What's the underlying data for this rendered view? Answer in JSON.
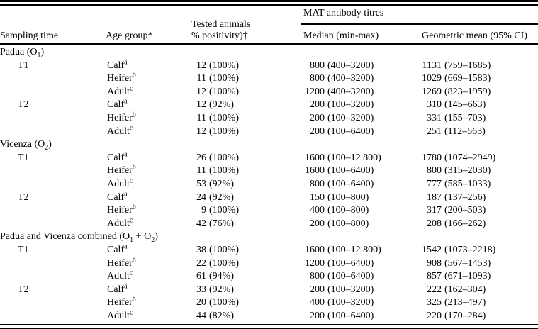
{
  "colors": {
    "text": "#000000",
    "background": "#ffffff",
    "rule": "#000000"
  },
  "table": {
    "header": {
      "col1": "Sampling time",
      "col2": "Age group*",
      "col3_line1": "Tested animals",
      "col3_line2": "% positivity)†",
      "mat_title": "MAT antibody titres",
      "col4": "Median (min-max)",
      "col5": "Geometric mean (95% CI)"
    },
    "sections": [
      {
        "title_pre": "Padua (O",
        "title_sub": "1",
        "title_post": ")",
        "rows": [
          {
            "time": "T1",
            "age": "Calf",
            "sup": "a",
            "n": "12",
            "pos": "(100%)",
            "med": "800",
            "medr": "(400–3200)",
            "gm": "1131",
            "gmr": "(759–1685)"
          },
          {
            "time": "",
            "age": "Heifer",
            "sup": "b",
            "n": "11",
            "pos": "(100%)",
            "med": "800",
            "medr": "(400–3200)",
            "gm": "1029",
            "gmr": "(669–1583)"
          },
          {
            "time": "",
            "age": "Adult",
            "sup": "c",
            "n": "12",
            "pos": "(100%)",
            "med": "1200",
            "medr": "(400–3200)",
            "gm": "1269",
            "gmr": "(823–1959)"
          },
          {
            "time": "T2",
            "age": "Calf",
            "sup": "a",
            "n": "12",
            "pos": "(92%)",
            "med": "200",
            "medr": "(100–3200)",
            "gm": "310",
            "gmr": "(145–663)"
          },
          {
            "time": "",
            "age": "Heifer",
            "sup": "b",
            "n": "11",
            "pos": "(100%)",
            "med": "200",
            "medr": "(100–3200)",
            "gm": "331",
            "gmr": "(155–703)"
          },
          {
            "time": "",
            "age": "Adult",
            "sup": "c",
            "n": "12",
            "pos": "(100%)",
            "med": "200",
            "medr": "(100–6400)",
            "gm": "251",
            "gmr": "(112–563)"
          }
        ]
      },
      {
        "title_pre": "Vicenza (O",
        "title_sub": "2",
        "title_post": ")",
        "rows": [
          {
            "time": "T1",
            "age": "Calf",
            "sup": "a",
            "n": "26",
            "pos": "(100%)",
            "med": "1600",
            "medr": "(100–12 800)",
            "gm": "1780",
            "gmr": "(1074–2949)"
          },
          {
            "time": "",
            "age": "Heifer",
            "sup": "b",
            "n": "11",
            "pos": "(100%)",
            "med": "1600",
            "medr": "(100–6400)",
            "gm": "800",
            "gmr": "(315–2030)"
          },
          {
            "time": "",
            "age": "Adult",
            "sup": "c",
            "n": "53",
            "pos": "(92%)",
            "med": "800",
            "medr": "(100–6400)",
            "gm": "777",
            "gmr": "(585–1033)"
          },
          {
            "time": "T2",
            "age": "Calf",
            "sup": "a",
            "n": "24",
            "pos": "(92%)",
            "med": "150",
            "medr": "(100–800)",
            "gm": "187",
            "gmr": "(137–256)"
          },
          {
            "time": "",
            "age": "Heifer",
            "sup": "b",
            "n": "9",
            "pos": "(100%)",
            "med": "400",
            "medr": "(100–800)",
            "gm": "317",
            "gmr": "(200–503)"
          },
          {
            "time": "",
            "age": "Adult",
            "sup": "c",
            "n": "42",
            "pos": "(76%)",
            "med": "200",
            "medr": "(100–800)",
            "gm": "208",
            "gmr": "(166–262)"
          }
        ]
      },
      {
        "title_pre": "Padua and Vicenza combined (O",
        "title_sub": "1",
        "title_mid": " + O",
        "title_sub2": "2",
        "title_post": ")",
        "rows": [
          {
            "time": "T1",
            "age": "Calf",
            "sup": "a",
            "n": "38",
            "pos": "(100%)",
            "med": "1600",
            "medr": "(100–12 800)",
            "gm": "1542",
            "gmr": "(1073–2218)"
          },
          {
            "time": "",
            "age": "Heifer",
            "sup": "b",
            "n": "22",
            "pos": "(100%)",
            "med": "1200",
            "medr": "(100–6400)",
            "gm": "908",
            "gmr": "(567–1453)"
          },
          {
            "time": "",
            "age": "Adult",
            "sup": "c",
            "n": "61",
            "pos": "(94%)",
            "med": "800",
            "medr": "(100–6400)",
            "gm": "857",
            "gmr": "(671–1093)"
          },
          {
            "time": "T2",
            "age": "Calf",
            "sup": "a",
            "n": "33",
            "pos": "(92%)",
            "med": "200",
            "medr": "(100–3200)",
            "gm": "222",
            "gmr": "(162–304)"
          },
          {
            "time": "",
            "age": "Heifer",
            "sup": "b",
            "n": "20",
            "pos": "(100%)",
            "med": "400",
            "medr": "(100–3200)",
            "gm": "325",
            "gmr": "(213–497)"
          },
          {
            "time": "",
            "age": "Adult",
            "sup": "c",
            "n": "44",
            "pos": "(82%)",
            "med": "200",
            "medr": "(100–6400)",
            "gm": "220",
            "gmr": "(170–284)"
          }
        ]
      }
    ]
  }
}
